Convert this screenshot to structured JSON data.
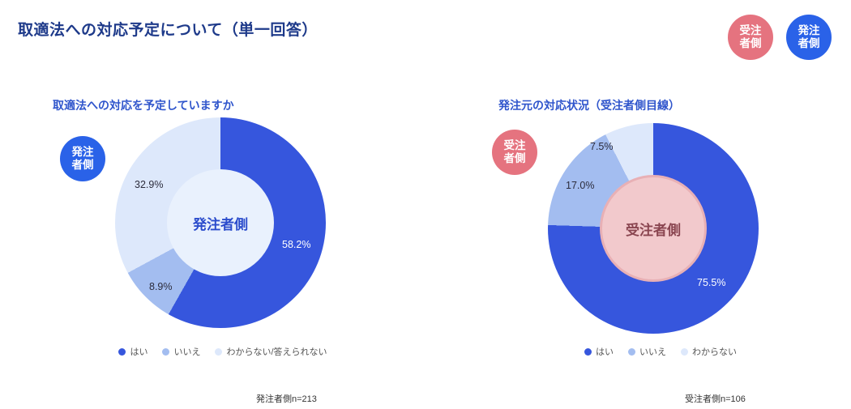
{
  "header": {
    "title": "取適法への対応予定について（単一回答）",
    "badges": [
      {
        "label": "受注\n者側",
        "color": "#e5737f"
      },
      {
        "label": "発注\n者側",
        "color": "#2a62e8"
      }
    ]
  },
  "chart_data": [
    {
      "type": "pie",
      "subtype": "donut",
      "title": "取適法への対応を予定していますか",
      "side_badge": {
        "label": "発注\n者側",
        "color": "#2a62e8"
      },
      "center_label": "発注者側",
      "center_bg": "#e9f1fd",
      "center_color": "#2b4ccc",
      "center_border": "",
      "categories": [
        "はい",
        "いいえ",
        "わからない/答えられない"
      ],
      "values": [
        58.2,
        8.9,
        32.9
      ],
      "value_labels": [
        "58.2%",
        "8.9%",
        "32.9%"
      ],
      "value_label_colors": [
        "#ffffff",
        "#2c2c3c",
        "#2c2c3c"
      ],
      "colors": [
        "#3656dd",
        "#a3bdf0",
        "#dde8fb"
      ],
      "n_label": "発注者側n=213",
      "legend_position": "bottom",
      "start_angle_deg": 0
    },
    {
      "type": "pie",
      "subtype": "donut",
      "title": "発注元の対応状況（受注者側目線）",
      "side_badge": {
        "label": "受注\n者側",
        "color": "#e5737f"
      },
      "center_label": "受注者側",
      "center_bg": "#f2c9cc",
      "center_color": "#8a4550",
      "center_border": "#e8b0b5",
      "categories": [
        "はい",
        "いいえ",
        "わからない"
      ],
      "values": [
        75.5,
        17.0,
        7.5
      ],
      "value_labels": [
        "75.5%",
        "17.0%",
        "7.5%"
      ],
      "value_label_colors": [
        "#ffffff",
        "#2c2c3c",
        "#2c2c3c"
      ],
      "colors": [
        "#3656dd",
        "#a3bdf0",
        "#dde8fb"
      ],
      "n_label": "受注者側n=106",
      "legend_position": "bottom",
      "start_angle_deg": 0
    }
  ]
}
